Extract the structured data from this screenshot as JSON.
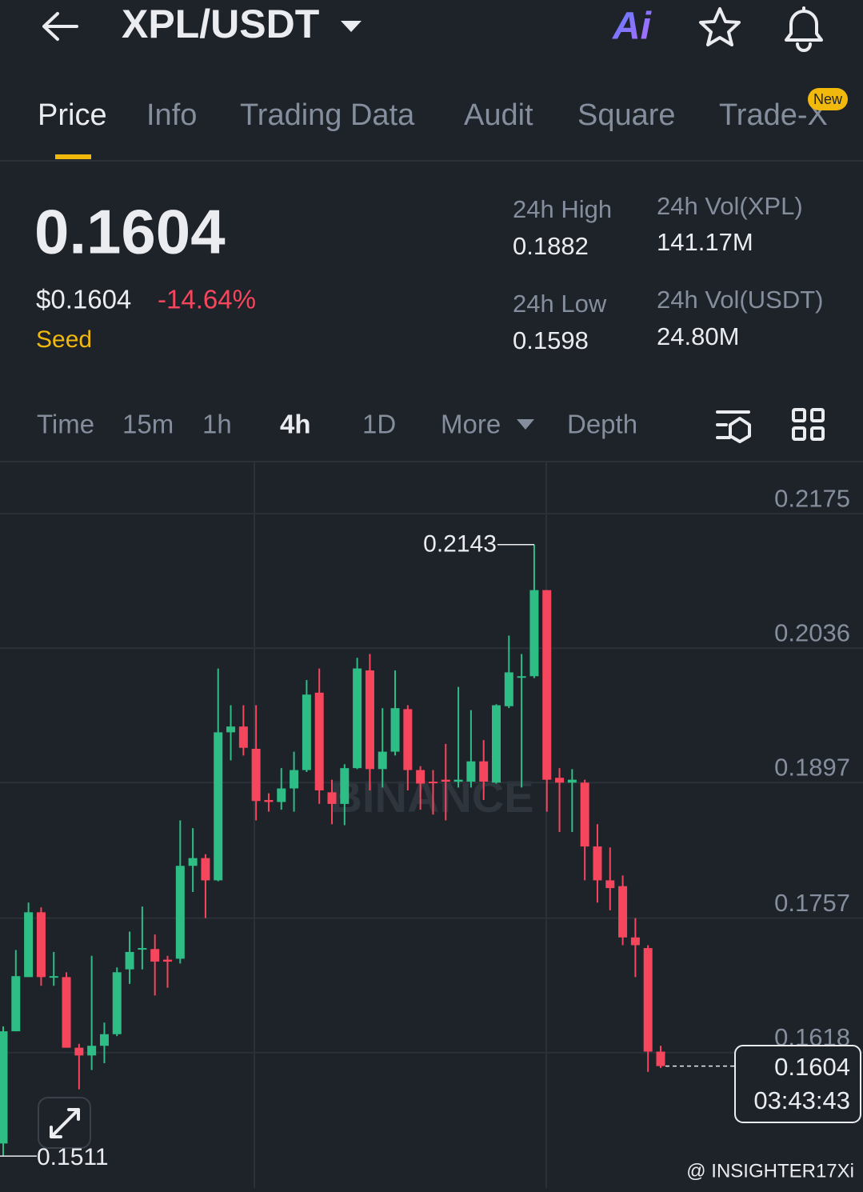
{
  "header": {
    "pair": "XPL/USDT",
    "ai": "Ai"
  },
  "tabs": [
    "Price",
    "Info",
    "Trading Data",
    "Audit",
    "Square",
    "Trade-X"
  ],
  "tab_badge": "New",
  "ticker": {
    "price": "0.1604",
    "price_usd": "$0.1604",
    "change": "-14.64%",
    "tag": "Seed"
  },
  "stats": [
    {
      "label": "24h High",
      "value": "0.1882"
    },
    {
      "label": "24h Vol(XPL)",
      "value": "141.17M"
    },
    {
      "label": "24h Low",
      "value": "0.1598"
    },
    {
      "label": "24h Vol(USDT)",
      "value": "24.80M"
    }
  ],
  "intervals": [
    "Time",
    "15m",
    "1h",
    "4h",
    "1D",
    "More",
    "Depth"
  ],
  "chart_data": {
    "type": "candlestick",
    "open": [
      0.1524,
      0.164,
      0.1696,
      0.1763,
      0.1696,
      0.1696,
      0.1623,
      0.1615,
      0.1625,
      0.1637,
      0.1704,
      0.1725,
      0.1725,
      0.1714,
      0.1715,
      0.1811,
      0.1819,
      0.1796,
      0.1949,
      0.1955,
      0.1932,
      0.1879,
      0.1877,
      0.1891,
      0.191,
      0.199,
      0.1887,
      0.1875,
      0.1912,
      0.2013,
      0.1911,
      0.1929,
      0.1973,
      0.191,
      0.1898,
      0.19,
      0.1898,
      0.1898,
      0.1919,
      0.1897,
      0.1976,
      0.2007,
      0.2007,
      0.2096,
      0.1902,
      0.1897,
      0.1897,
      0.1831,
      0.1796,
      0.179,
      0.1737,
      0.1726,
      0.1619
    ],
    "high": [
      0.1645,
      0.1724,
      0.1773,
      0.1768,
      0.1722,
      0.1701,
      0.1627,
      0.1718,
      0.1649,
      0.1706,
      0.1743,
      0.1769,
      0.174,
      0.1718,
      0.1858,
      0.185,
      0.1823,
      0.2015,
      0.1977,
      0.1977,
      0.1977,
      0.1886,
      0.1912,
      0.1929,
      0.2003,
      0.2015,
      0.19,
      0.1916,
      0.2026,
      0.203,
      0.1974,
      0.2013,
      0.1977,
      0.1914,
      0.191,
      0.1937,
      0.1996,
      0.1972,
      0.1941,
      0.1978,
      0.2049,
      0.203,
      0.2143,
      0.2096,
      0.1912,
      0.1911,
      0.19,
      0.1854,
      0.183,
      0.1801,
      0.1757,
      0.1729,
      0.1625
    ],
    "low": [
      0.1511,
      0.164,
      0.1696,
      0.1687,
      0.1687,
      0.1623,
      0.158,
      0.16,
      0.1607,
      0.1635,
      0.1689,
      0.1704,
      0.1677,
      0.1685,
      0.171,
      0.1784,
      0.1757,
      0.1795,
      0.192,
      0.1925,
      0.1858,
      0.1867,
      0.1869,
      0.1867,
      0.1908,
      0.1875,
      0.1854,
      0.1853,
      0.1911,
      0.1889,
      0.1892,
      0.1925,
      0.1889,
      0.1869,
      0.1864,
      0.1858,
      0.1892,
      0.1892,
      0.1879,
      0.1896,
      0.1974,
      0.1892,
      0.2005,
      0.1867,
      0.1846,
      0.1846,
      0.1796,
      0.1773,
      0.1765,
      0.1729,
      0.1696,
      0.1598,
      0.1602
    ],
    "close": [
      0.164,
      0.1697,
      0.1763,
      0.1696,
      0.1697,
      0.1623,
      0.1615,
      0.1625,
      0.1637,
      0.1701,
      0.1722,
      0.1726,
      0.1712,
      0.1712,
      0.1811,
      0.1819,
      0.1796,
      0.1949,
      0.1955,
      0.1933,
      0.1878,
      0.1877,
      0.1891,
      0.191,
      0.1988,
      0.1889,
      0.1875,
      0.1912,
      0.2015,
      0.1911,
      0.1929,
      0.1974,
      0.191,
      0.1896,
      0.1897,
      0.1898,
      0.19,
      0.1919,
      0.1898,
      0.1977,
      0.2011,
      0.2007,
      0.2096,
      0.19,
      0.1897,
      0.19,
      0.1831,
      0.1796,
      0.1788,
      0.1737,
      0.1729,
      0.1619,
      0.1604
    ],
    "ylim": [
      0.1478,
      0.2228
    ],
    "yticks": [
      0.2175,
      0.2036,
      0.1897,
      0.1757,
      0.1618
    ],
    "grid": true,
    "up_color": "#2ebd85",
    "down_color": "#f6465d",
    "countdown": "03:43:43",
    "watermark": "BINANCE"
  },
  "credit": "@ INSIGHTER17Xi"
}
